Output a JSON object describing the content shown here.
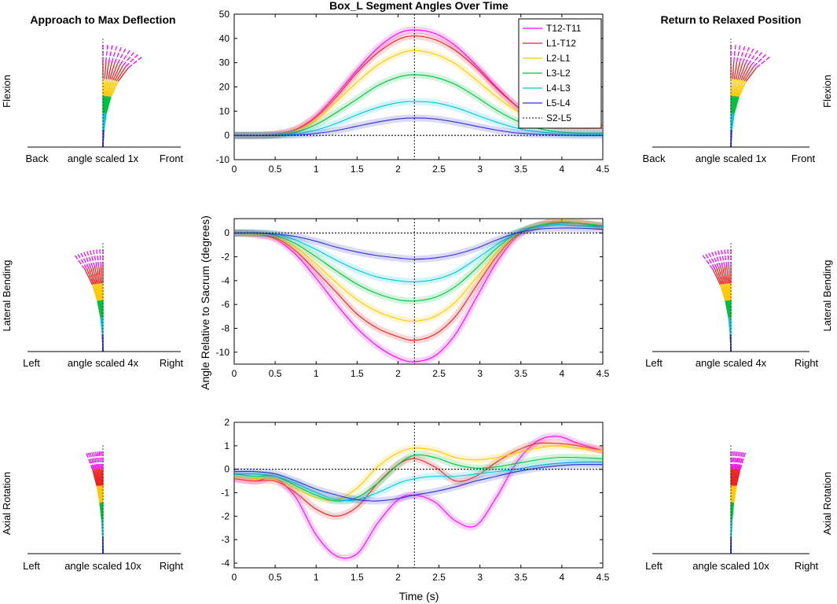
{
  "figure": {
    "center_title": "Box_L Segment Angles Over Time",
    "left_title": "Approach to Max Deflection",
    "right_title": "Return to Relaxed Position",
    "ylabel": "Angle Relative to Sacrum (degrees)",
    "xlabel": "Time (s)"
  },
  "rows": [
    {
      "name": "Flexion",
      "side_left": "Back",
      "side_right": "Front",
      "scale_label": "angle scaled 1x"
    },
    {
      "name": "Lateral Bending",
      "side_left": "Left",
      "side_right": "Right",
      "scale_label": "angle scaled 4x"
    },
    {
      "name": "Axial Rotation",
      "side_left": "Left",
      "side_right": "Right",
      "scale_label": "angle scaled 10x"
    }
  ],
  "colors": {
    "T12-T11": "#ff00ff",
    "L1-T12": "#ee2020",
    "L2-L1": "#ffc800",
    "L3-L2": "#00c040",
    "L4-L3": "#00c8d8",
    "L5-L4": "#3030d0",
    "S2-L5": "#000000"
  },
  "chart_data": [
    {
      "type": "line",
      "title": "Box_L Segment Angles Over Time",
      "panel": "Flexion",
      "xlabel": "",
      "ylabel": "",
      "xlim": [
        0,
        4.5
      ],
      "ylim": [
        -10,
        50
      ],
      "xticks": [
        0,
        0.5,
        1,
        1.5,
        2,
        2.5,
        3,
        3.5,
        4,
        4.5
      ],
      "yticks": [
        -10,
        0,
        10,
        20,
        30,
        40,
        50
      ],
      "vline_x": 2.2,
      "legend_position": "top-right",
      "x": [
        0,
        0.25,
        0.5,
        0.75,
        1,
        1.25,
        1.5,
        1.75,
        2,
        2.2,
        2.45,
        2.7,
        2.95,
        3.2,
        3.45,
        3.7,
        3.95,
        4.2,
        4.5
      ],
      "series": [
        {
          "name": "T12-T11",
          "values": [
            0,
            0,
            0.5,
            2.5,
            8,
            17,
            27,
            36,
            42,
            43.5,
            42,
            37,
            29,
            20,
            12,
            6,
            3.5,
            3,
            3
          ]
        },
        {
          "name": "L1-T12",
          "values": [
            0,
            0,
            0.4,
            2.3,
            7.5,
            16,
            26,
            34,
            39.5,
            41,
            39.5,
            35,
            28,
            19.5,
            12,
            7,
            4.5,
            4,
            4
          ]
        },
        {
          "name": "L2-L1",
          "values": [
            0,
            0,
            0.3,
            2,
            6.5,
            14,
            22,
            29,
            33.5,
            35,
            33.5,
            29.5,
            23,
            16,
            10,
            6,
            4,
            3.5,
            3.5
          ]
        },
        {
          "name": "L3-L2",
          "values": [
            0,
            0,
            0.2,
            1.3,
            4.5,
            9.5,
            15,
            20.5,
            24,
            25,
            24,
            21,
            16,
            10.5,
            6,
            3,
            1.5,
            1,
            1
          ]
        },
        {
          "name": "L4-L3",
          "values": [
            0,
            0,
            0.1,
            0.6,
            2.2,
            5,
            8.5,
            11.5,
            13.5,
            14,
            13.5,
            11.5,
            8.5,
            5.5,
            3,
            1.5,
            0.8,
            0.5,
            0.5
          ]
        },
        {
          "name": "L5-L4",
          "values": [
            0,
            0,
            0,
            0.2,
            0.8,
            2,
            3.8,
            5.5,
            6.8,
            7.2,
            6.8,
            5.5,
            3.8,
            2.2,
            1,
            0.5,
            0.2,
            0,
            0
          ]
        },
        {
          "name": "S2-L5",
          "values": [
            0,
            0,
            0,
            0,
            0,
            0,
            0,
            0,
            0,
            0,
            0,
            0,
            0,
            0,
            0,
            0,
            0,
            0,
            0
          ]
        }
      ]
    },
    {
      "type": "line",
      "panel": "Lateral Bending",
      "xlabel": "",
      "ylabel": "Angle Relative to Sacrum (degrees)",
      "xlim": [
        0,
        4.5
      ],
      "ylim": [
        -11,
        1.2
      ],
      "xticks": [
        0,
        0.5,
        1,
        1.5,
        2,
        2.5,
        3,
        3.5,
        4,
        4.5
      ],
      "yticks": [
        -10,
        -8,
        -6,
        -4,
        -2,
        0
      ],
      "vline_x": 2.2,
      "x": [
        0,
        0.25,
        0.5,
        0.75,
        1,
        1.25,
        1.5,
        1.75,
        2,
        2.2,
        2.45,
        2.7,
        2.95,
        3.2,
        3.45,
        3.7,
        3.95,
        4.2,
        4.5
      ],
      "series": [
        {
          "name": "T12-T11",
          "values": [
            0,
            -0.1,
            -0.5,
            -1.8,
            -3.8,
            -6,
            -8,
            -9.5,
            -10.5,
            -10.8,
            -10.3,
            -8.5,
            -5.5,
            -2.5,
            -0.3,
            0.6,
            1,
            0.9,
            0.6
          ]
        },
        {
          "name": "L1-T12",
          "values": [
            0,
            -0.1,
            -0.4,
            -1.5,
            -3.2,
            -5,
            -6.8,
            -8,
            -8.7,
            -9,
            -8.5,
            -7,
            -4.5,
            -2,
            -0.2,
            0.6,
            0.9,
            0.8,
            0.5
          ]
        },
        {
          "name": "L2-L1",
          "values": [
            0,
            -0.1,
            -0.3,
            -1.2,
            -2.6,
            -4.2,
            -5.6,
            -6.6,
            -7.2,
            -7.4,
            -7,
            -5.8,
            -3.8,
            -1.7,
            -0.1,
            0.6,
            1,
            0.9,
            0.6
          ]
        },
        {
          "name": "L3-L2",
          "values": [
            0,
            0,
            -0.2,
            -0.9,
            -2,
            -3.2,
            -4.3,
            -5.1,
            -5.6,
            -5.7,
            -5.4,
            -4.5,
            -3,
            -1.3,
            0,
            0.6,
            0.8,
            0.8,
            0.6
          ]
        },
        {
          "name": "L4-L3",
          "values": [
            0,
            0,
            -0.1,
            -0.6,
            -1.4,
            -2.3,
            -3.1,
            -3.7,
            -4,
            -4.1,
            -3.9,
            -3.3,
            -2.2,
            -1,
            0,
            0.5,
            0.7,
            0.6,
            0.5
          ]
        },
        {
          "name": "L5-L4",
          "values": [
            0,
            0,
            -0.1,
            -0.3,
            -0.7,
            -1.2,
            -1.6,
            -1.9,
            -2.1,
            -2.2,
            -2.1,
            -1.8,
            -1.3,
            -0.6,
            0,
            0.3,
            0.4,
            0.4,
            0.3
          ]
        },
        {
          "name": "S2-L5",
          "values": [
            0,
            0,
            0,
            0,
            0,
            0,
            0,
            0,
            0,
            0,
            0,
            0,
            0,
            0,
            0,
            0,
            0,
            0,
            0
          ]
        }
      ]
    },
    {
      "type": "line",
      "panel": "Axial Rotation",
      "xlabel": "Time (s)",
      "ylabel": "",
      "xlim": [
        0,
        4.5
      ],
      "ylim": [
        -4.2,
        2
      ],
      "xticks": [
        0,
        0.5,
        1,
        1.5,
        2,
        2.5,
        3,
        3.5,
        4,
        4.5
      ],
      "yticks": [
        -4,
        -3,
        -2,
        -1,
        0,
        1,
        2
      ],
      "vline_x": 2.2,
      "x": [
        0,
        0.25,
        0.5,
        0.75,
        1,
        1.25,
        1.5,
        1.75,
        2,
        2.2,
        2.45,
        2.7,
        2.95,
        3.2,
        3.45,
        3.7,
        3.95,
        4.2,
        4.5
      ],
      "series": [
        {
          "name": "T12-T11",
          "values": [
            -0.4,
            -0.5,
            -0.4,
            -1.2,
            -2.8,
            -3.7,
            -3.6,
            -2.3,
            -1.3,
            -1.1,
            -1.4,
            -2.2,
            -2.4,
            -1.2,
            0.3,
            1.2,
            1.4,
            1.1,
            0.8
          ]
        },
        {
          "name": "L1-T12",
          "values": [
            -0.4,
            -0.5,
            -0.5,
            -1,
            -1.7,
            -2,
            -1.6,
            -0.6,
            0.2,
            0.45,
            0.1,
            -0.5,
            -0.3,
            0.3,
            0.8,
            1.1,
            1.1,
            1,
            0.8
          ]
        },
        {
          "name": "L2-L1",
          "values": [
            -0.3,
            -0.4,
            -0.4,
            -0.8,
            -1.2,
            -1.3,
            -0.8,
            0.1,
            0.7,
            0.9,
            0.8,
            0.5,
            0.4,
            0.5,
            0.7,
            0.9,
            1,
            0.9,
            0.8
          ]
        },
        {
          "name": "L3-L2",
          "values": [
            -0.2,
            -0.3,
            -0.3,
            -0.7,
            -1.1,
            -1.35,
            -1.2,
            -0.6,
            0.2,
            0.6,
            0.5,
            0.2,
            0.05,
            0.1,
            0.25,
            0.4,
            0.5,
            0.5,
            0.45
          ]
        },
        {
          "name": "L4-L3",
          "values": [
            -0.2,
            -0.2,
            -0.3,
            -0.6,
            -1,
            -1.3,
            -1.3,
            -1,
            -0.6,
            -0.4,
            -0.3,
            -0.3,
            -0.2,
            -0.1,
            0,
            0.15,
            0.25,
            0.3,
            0.3
          ]
        },
        {
          "name": "L5-L4",
          "values": [
            -0.1,
            -0.1,
            -0.2,
            -0.5,
            -0.85,
            -1.1,
            -1.3,
            -1.35,
            -1.25,
            -1.1,
            -0.95,
            -0.75,
            -0.5,
            -0.3,
            -0.1,
            0.05,
            0.15,
            0.2,
            0.2
          ]
        },
        {
          "name": "S2-L5",
          "values": [
            0,
            0,
            0,
            0,
            0,
            0,
            0,
            0,
            0,
            0,
            0,
            0,
            0,
            0,
            0,
            0,
            0,
            0,
            0
          ]
        }
      ]
    }
  ]
}
